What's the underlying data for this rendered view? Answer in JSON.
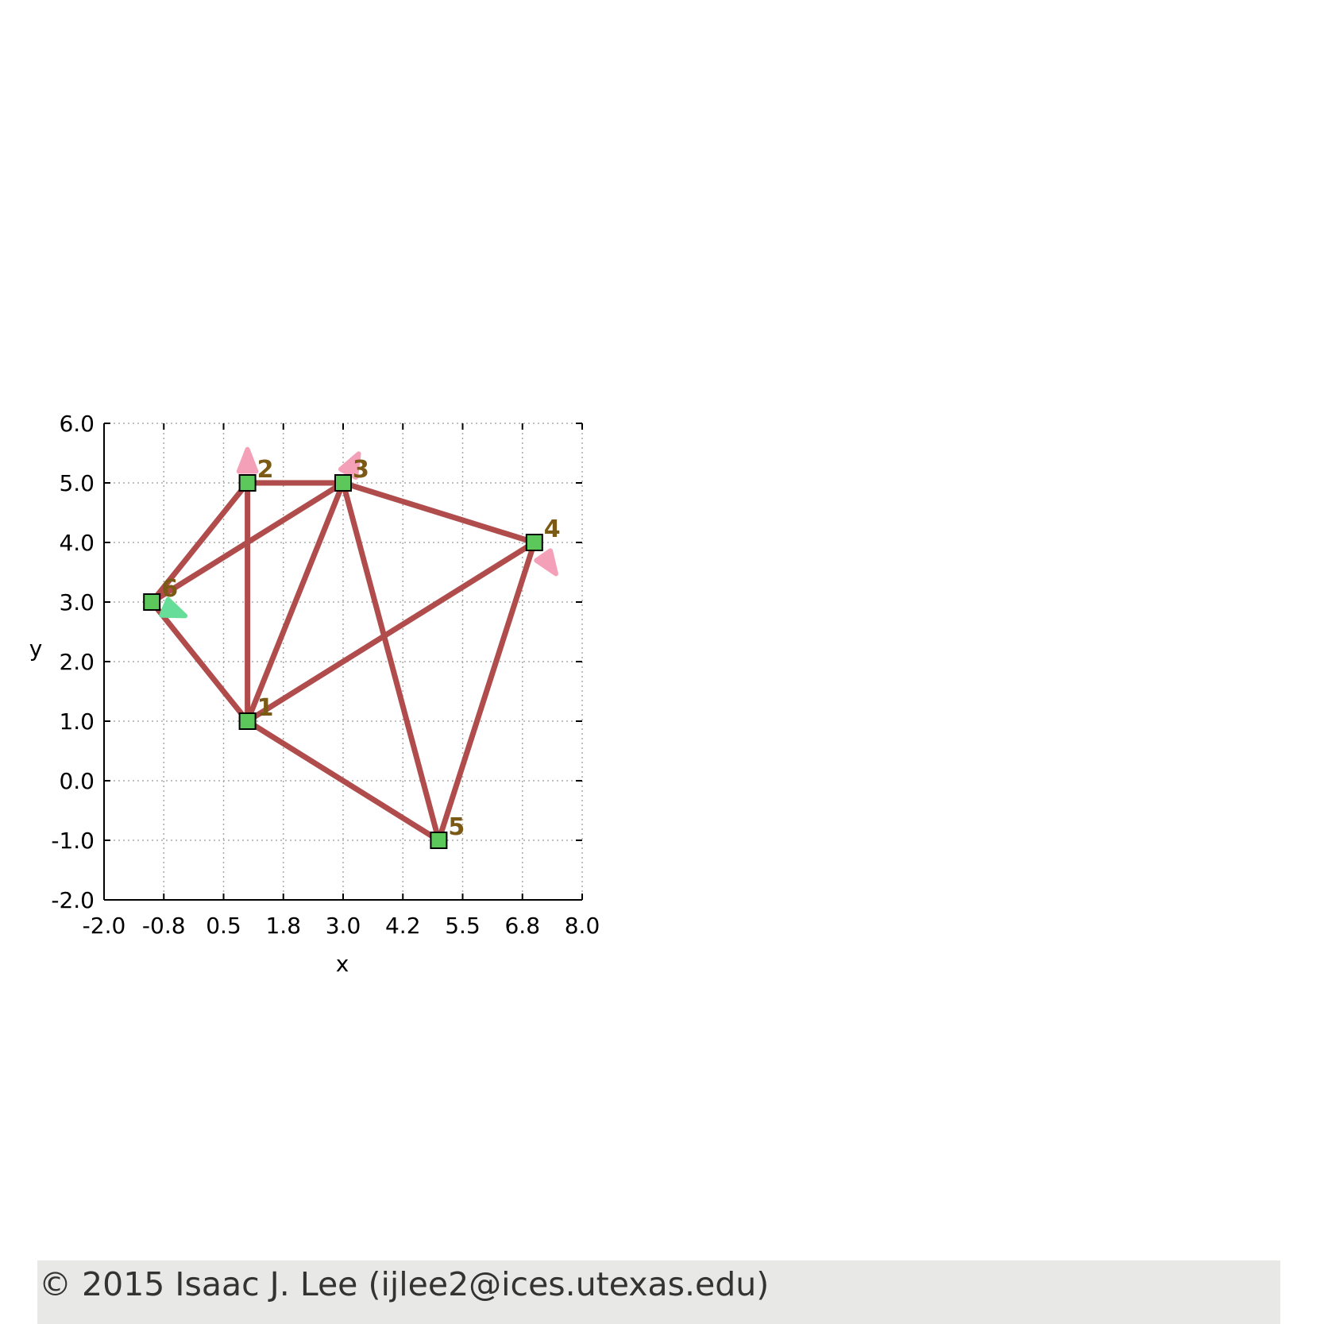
{
  "chart_data": {
    "type": "network",
    "xlabel": "x",
    "ylabel": "y",
    "xlim": [
      -2.0,
      8.0
    ],
    "ylim": [
      -2.0,
      6.0
    ],
    "xticks": [
      "-2.0",
      "-0.8",
      "0.5",
      "1.8",
      "3.0",
      "4.2",
      "5.5",
      "6.8",
      "8.0"
    ],
    "yticks": [
      "-2.0",
      "-1.0",
      "0.0",
      "1.0",
      "2.0",
      "3.0",
      "4.0",
      "5.0",
      "6.0"
    ],
    "grid": true,
    "nodes": [
      {
        "id": "1",
        "x": 1.0,
        "y": 1.0
      },
      {
        "id": "2",
        "x": 1.0,
        "y": 5.0
      },
      {
        "id": "3",
        "x": 3.0,
        "y": 5.0
      },
      {
        "id": "4",
        "x": 7.0,
        "y": 4.0
      },
      {
        "id": "5",
        "x": 5.0,
        "y": -1.0
      },
      {
        "id": "6",
        "x": -1.0,
        "y": 3.0
      }
    ],
    "edges": [
      [
        "1",
        "2"
      ],
      [
        "1",
        "3"
      ],
      [
        "1",
        "4"
      ],
      [
        "1",
        "5"
      ],
      [
        "1",
        "6"
      ],
      [
        "2",
        "3"
      ],
      [
        "2",
        "6"
      ],
      [
        "3",
        "4"
      ],
      [
        "3",
        "5"
      ],
      [
        "3",
        "6"
      ],
      [
        "4",
        "5"
      ]
    ],
    "arrows": [
      {
        "node": "2",
        "dx": 0.0,
        "dy": 0.35,
        "color": "#f4a0b8"
      },
      {
        "node": "3",
        "dx": 0.2,
        "dy": 0.3,
        "color": "#f4a0b8"
      },
      {
        "node": "4",
        "dx": 0.3,
        "dy": -0.35,
        "color": "#f4a0b8"
      },
      {
        "node": "6",
        "dx": 0.45,
        "dy": -0.15,
        "color": "#66dd99"
      }
    ],
    "colors": {
      "edge": "#b04c4c",
      "node_fill": "#5cc85c",
      "node_label": "#7a5a14",
      "grid": "#aaaaaa"
    }
  },
  "footer": {
    "text": "© 2015 Isaac J. Lee (ijlee2@ices.utexas.edu)"
  }
}
